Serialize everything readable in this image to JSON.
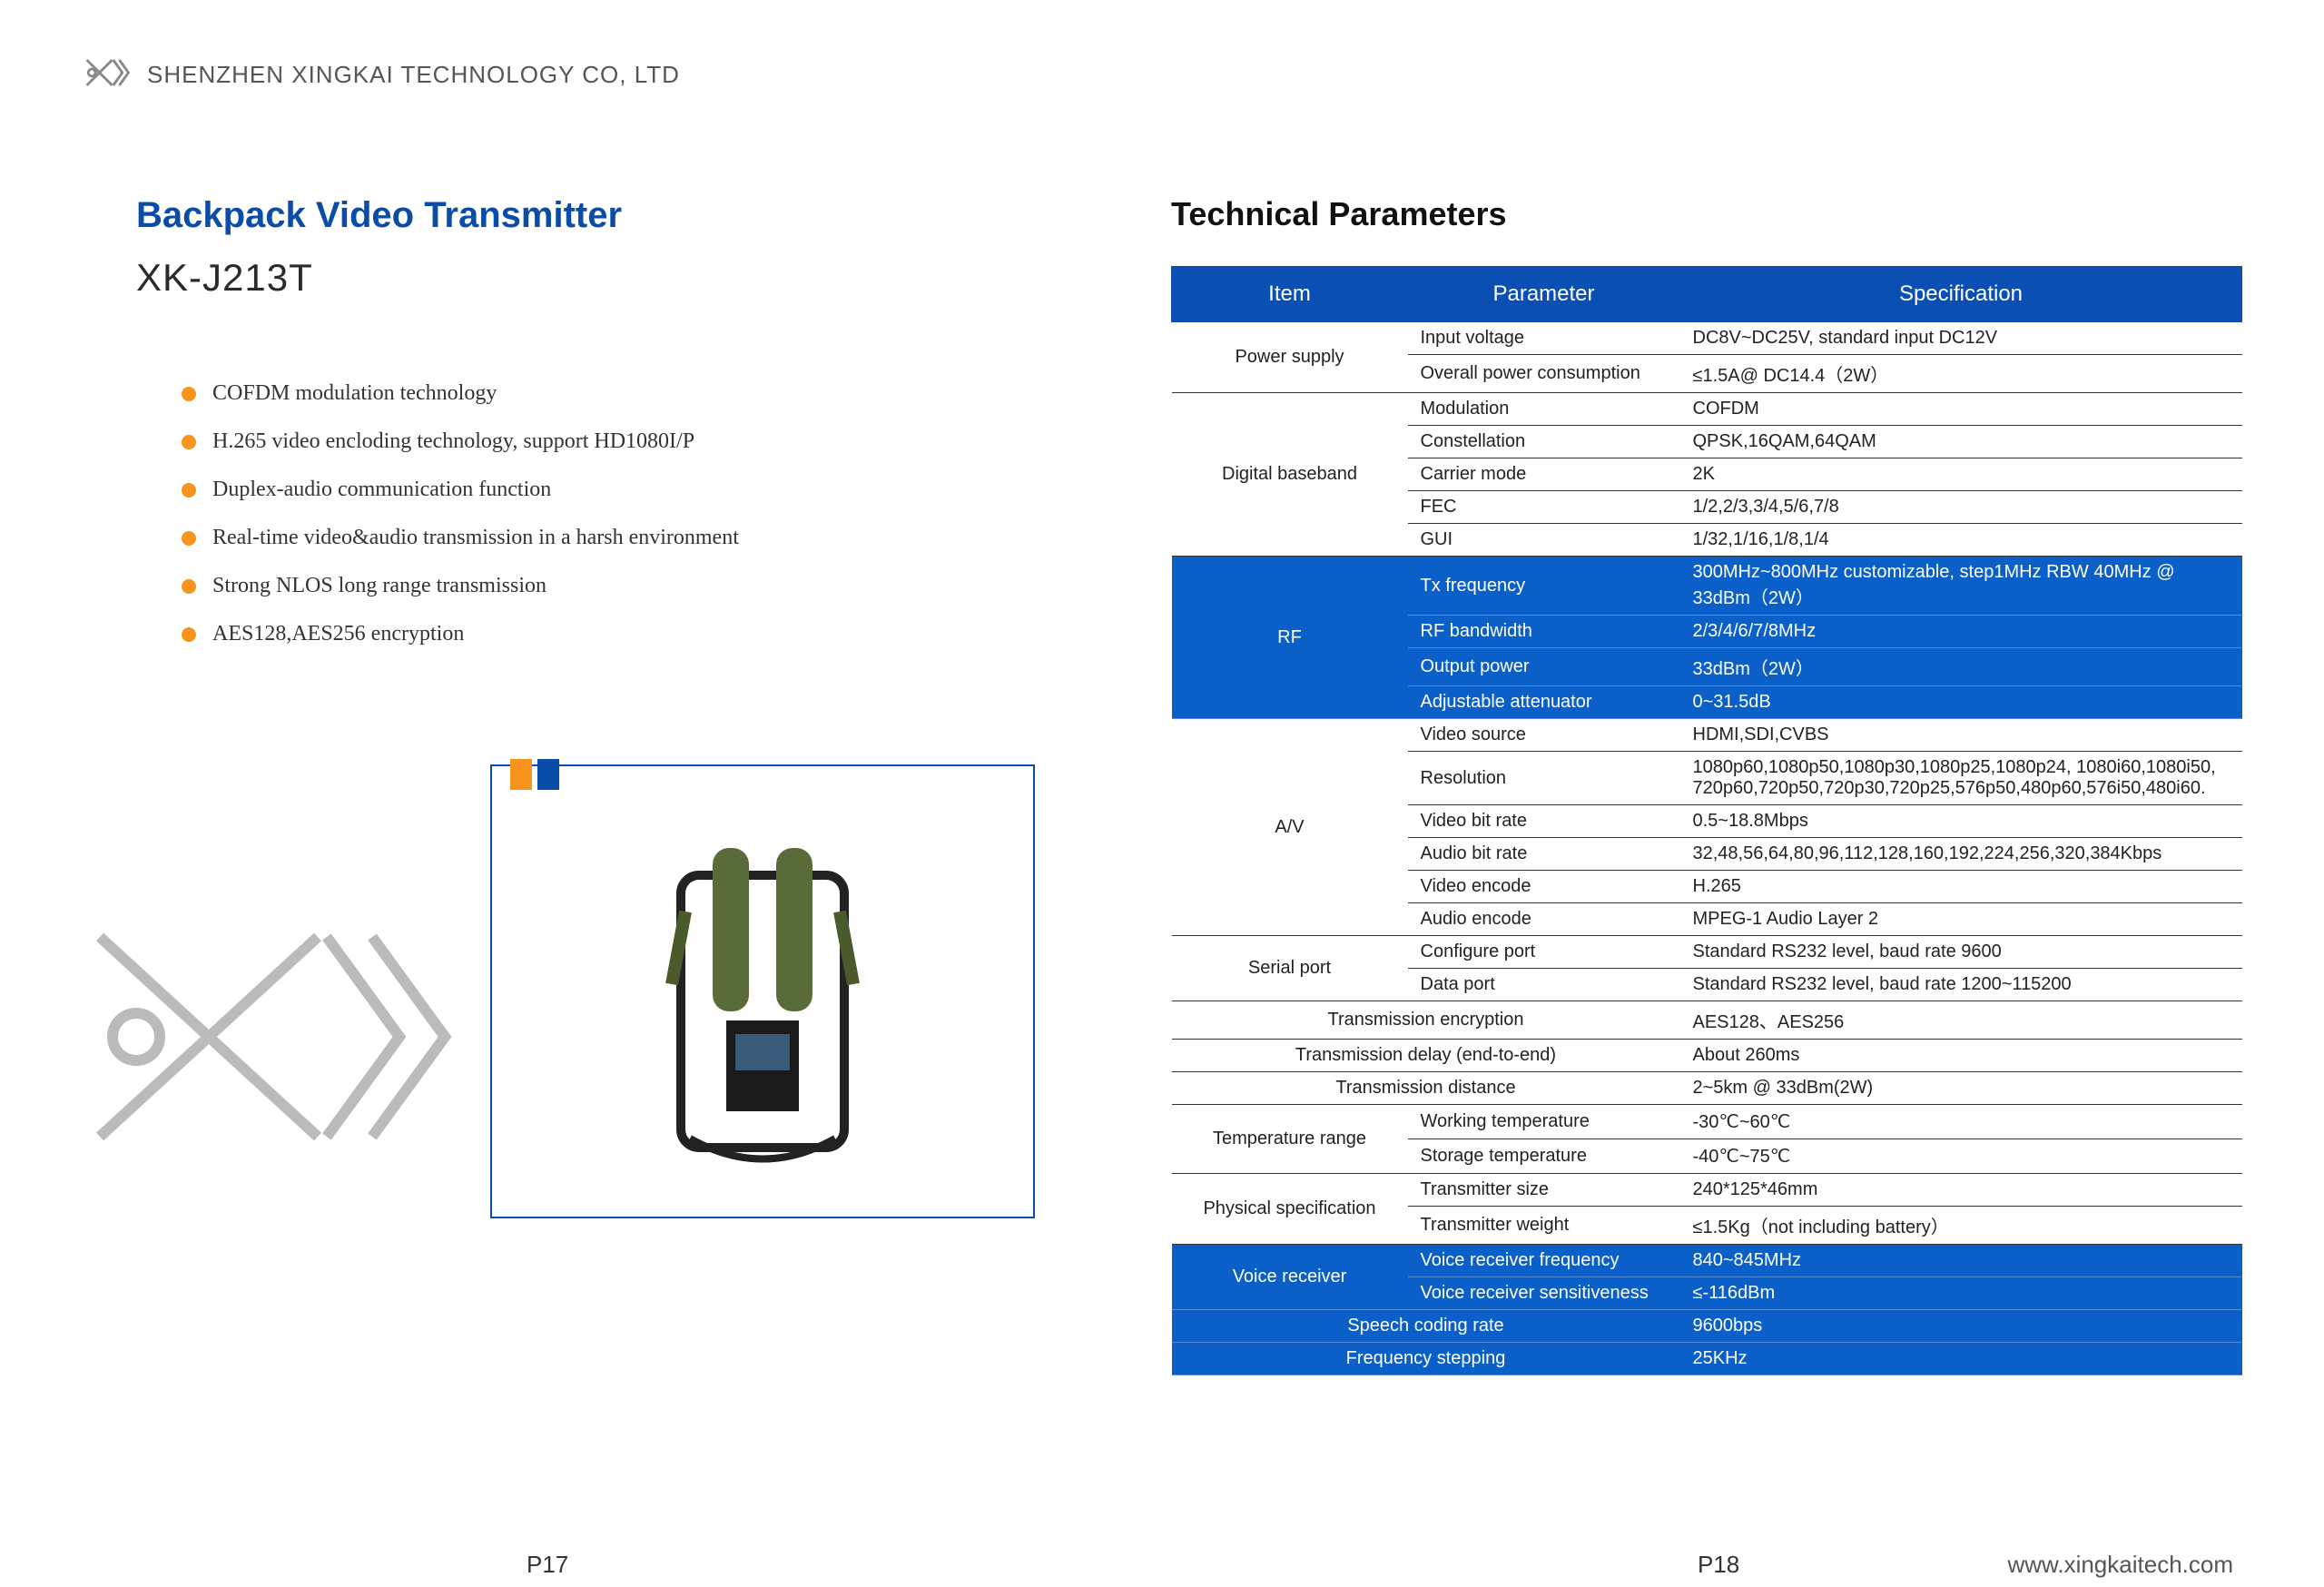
{
  "company": "SHENZHEN XINGKAI TECHNOLOGY CO, LTD",
  "product_title": "Backpack Video Transmitter",
  "product_model": "XK-J213T",
  "features": [
    "COFDM modulation technology",
    "H.265 video encloding technology, support HD1080I/P",
    "Duplex-audio communication function",
    "Real-time video&audio transmission in a harsh environment",
    "Strong NLOS long range transmission",
    "AES128,AES256 encryption"
  ],
  "tech_title": "Technical Parameters",
  "headers": {
    "item": "Item",
    "param": "Parameter",
    "spec": "Specification"
  },
  "colors": {
    "brand_blue": "#0a50b4",
    "row_blue": "#0a60c8",
    "bullet_orange": "#f7941d",
    "title_blue": "#0a4da8"
  },
  "rows": [
    {
      "cat": "Power supply",
      "rowspan": 2,
      "param": "Input voltage",
      "spec": "DC8V~DC25V, standard input DC12V"
    },
    {
      "param": "Overall power consumption",
      "spec": "≤1.5A@ DC14.4（2W）"
    },
    {
      "cat": "Digital baseband",
      "rowspan": 5,
      "param": "Modulation",
      "spec": "COFDM"
    },
    {
      "param": "Constellation",
      "spec": "QPSK,16QAM,64QAM"
    },
    {
      "param": "Carrier mode",
      "spec": "2K"
    },
    {
      "param": "FEC",
      "spec": "1/2,2/3,3/4,5/6,7/8"
    },
    {
      "param": "GUI",
      "spec": "1/32,1/16,1/8,1/4"
    },
    {
      "blue": true,
      "cat": "RF",
      "rowspan": 4,
      "param": "Tx frequency",
      "spec": "300MHz~800MHz customizable, step1MHz RBW 40MHz @ 33dBm（2W）"
    },
    {
      "blue": true,
      "param": "RF bandwidth",
      "spec": "2/3/4/6/7/8MHz"
    },
    {
      "blue": true,
      "param": "Output power",
      "spec": "33dBm（2W）"
    },
    {
      "blue": true,
      "param": "Adjustable attenuator",
      "spec": "0~31.5dB"
    },
    {
      "cat": "A/V",
      "rowspan": 6,
      "param": "Video source",
      "spec": "HDMI,SDI,CVBS"
    },
    {
      "param": "Resolution",
      "spec": "1080p60,1080p50,1080p30,1080p25,1080p24, 1080i60,1080i50, 720p60,720p50,720p30,720p25,576p50,480p60,576i50,480i60.",
      "small": true
    },
    {
      "param": "Video bit rate",
      "spec": "0.5~18.8Mbps"
    },
    {
      "param": "Audio bit rate",
      "spec": "32,48,56,64,80,96,112,128,160,192,224,256,320,384Kbps",
      "small": true
    },
    {
      "param": "Video encode",
      "spec": "H.265"
    },
    {
      "param": "Audio encode",
      "spec": "MPEG-1 Audio Layer 2"
    },
    {
      "cat": "Serial port",
      "rowspan": 2,
      "param": "Configure port",
      "spec": "Standard RS232 level, baud rate 9600"
    },
    {
      "param": "Data port",
      "spec": "Standard RS232 level, baud rate 1200~115200"
    },
    {
      "span2": "Transmission encryption",
      "spec": "AES128、AES256"
    },
    {
      "span2": "Transmission delay (end-to-end)",
      "spec": "About 260ms"
    },
    {
      "span2": "Transmission distance",
      "spec": "2~5km @ 33dBm(2W)"
    },
    {
      "cat": "Temperature range",
      "rowspan": 2,
      "param": "Working temperature",
      "spec": "-30℃~60℃"
    },
    {
      "param": "Storage temperature",
      "spec": "-40℃~75℃"
    },
    {
      "cat": "Physical specification",
      "rowspan": 2,
      "param": "Transmitter size",
      "spec": "240*125*46mm"
    },
    {
      "param": "Transmitter weight",
      "spec": "≤1.5Kg（not including battery）"
    },
    {
      "blue": true,
      "cat": "Voice receiver",
      "rowspan": 2,
      "param": "Voice receiver frequency",
      "spec": "840~845MHz"
    },
    {
      "blue": true,
      "param": "Voice receiver sensitiveness",
      "spec": "≤-116dBm"
    },
    {
      "blue": true,
      "span2": "Speech coding rate",
      "spec": "9600bps"
    },
    {
      "blue": true,
      "span2": "Frequency stepping",
      "spec": "25KHz"
    }
  ],
  "page_left": "P17",
  "page_right": "P18",
  "url": "www.xingkaitech.com"
}
